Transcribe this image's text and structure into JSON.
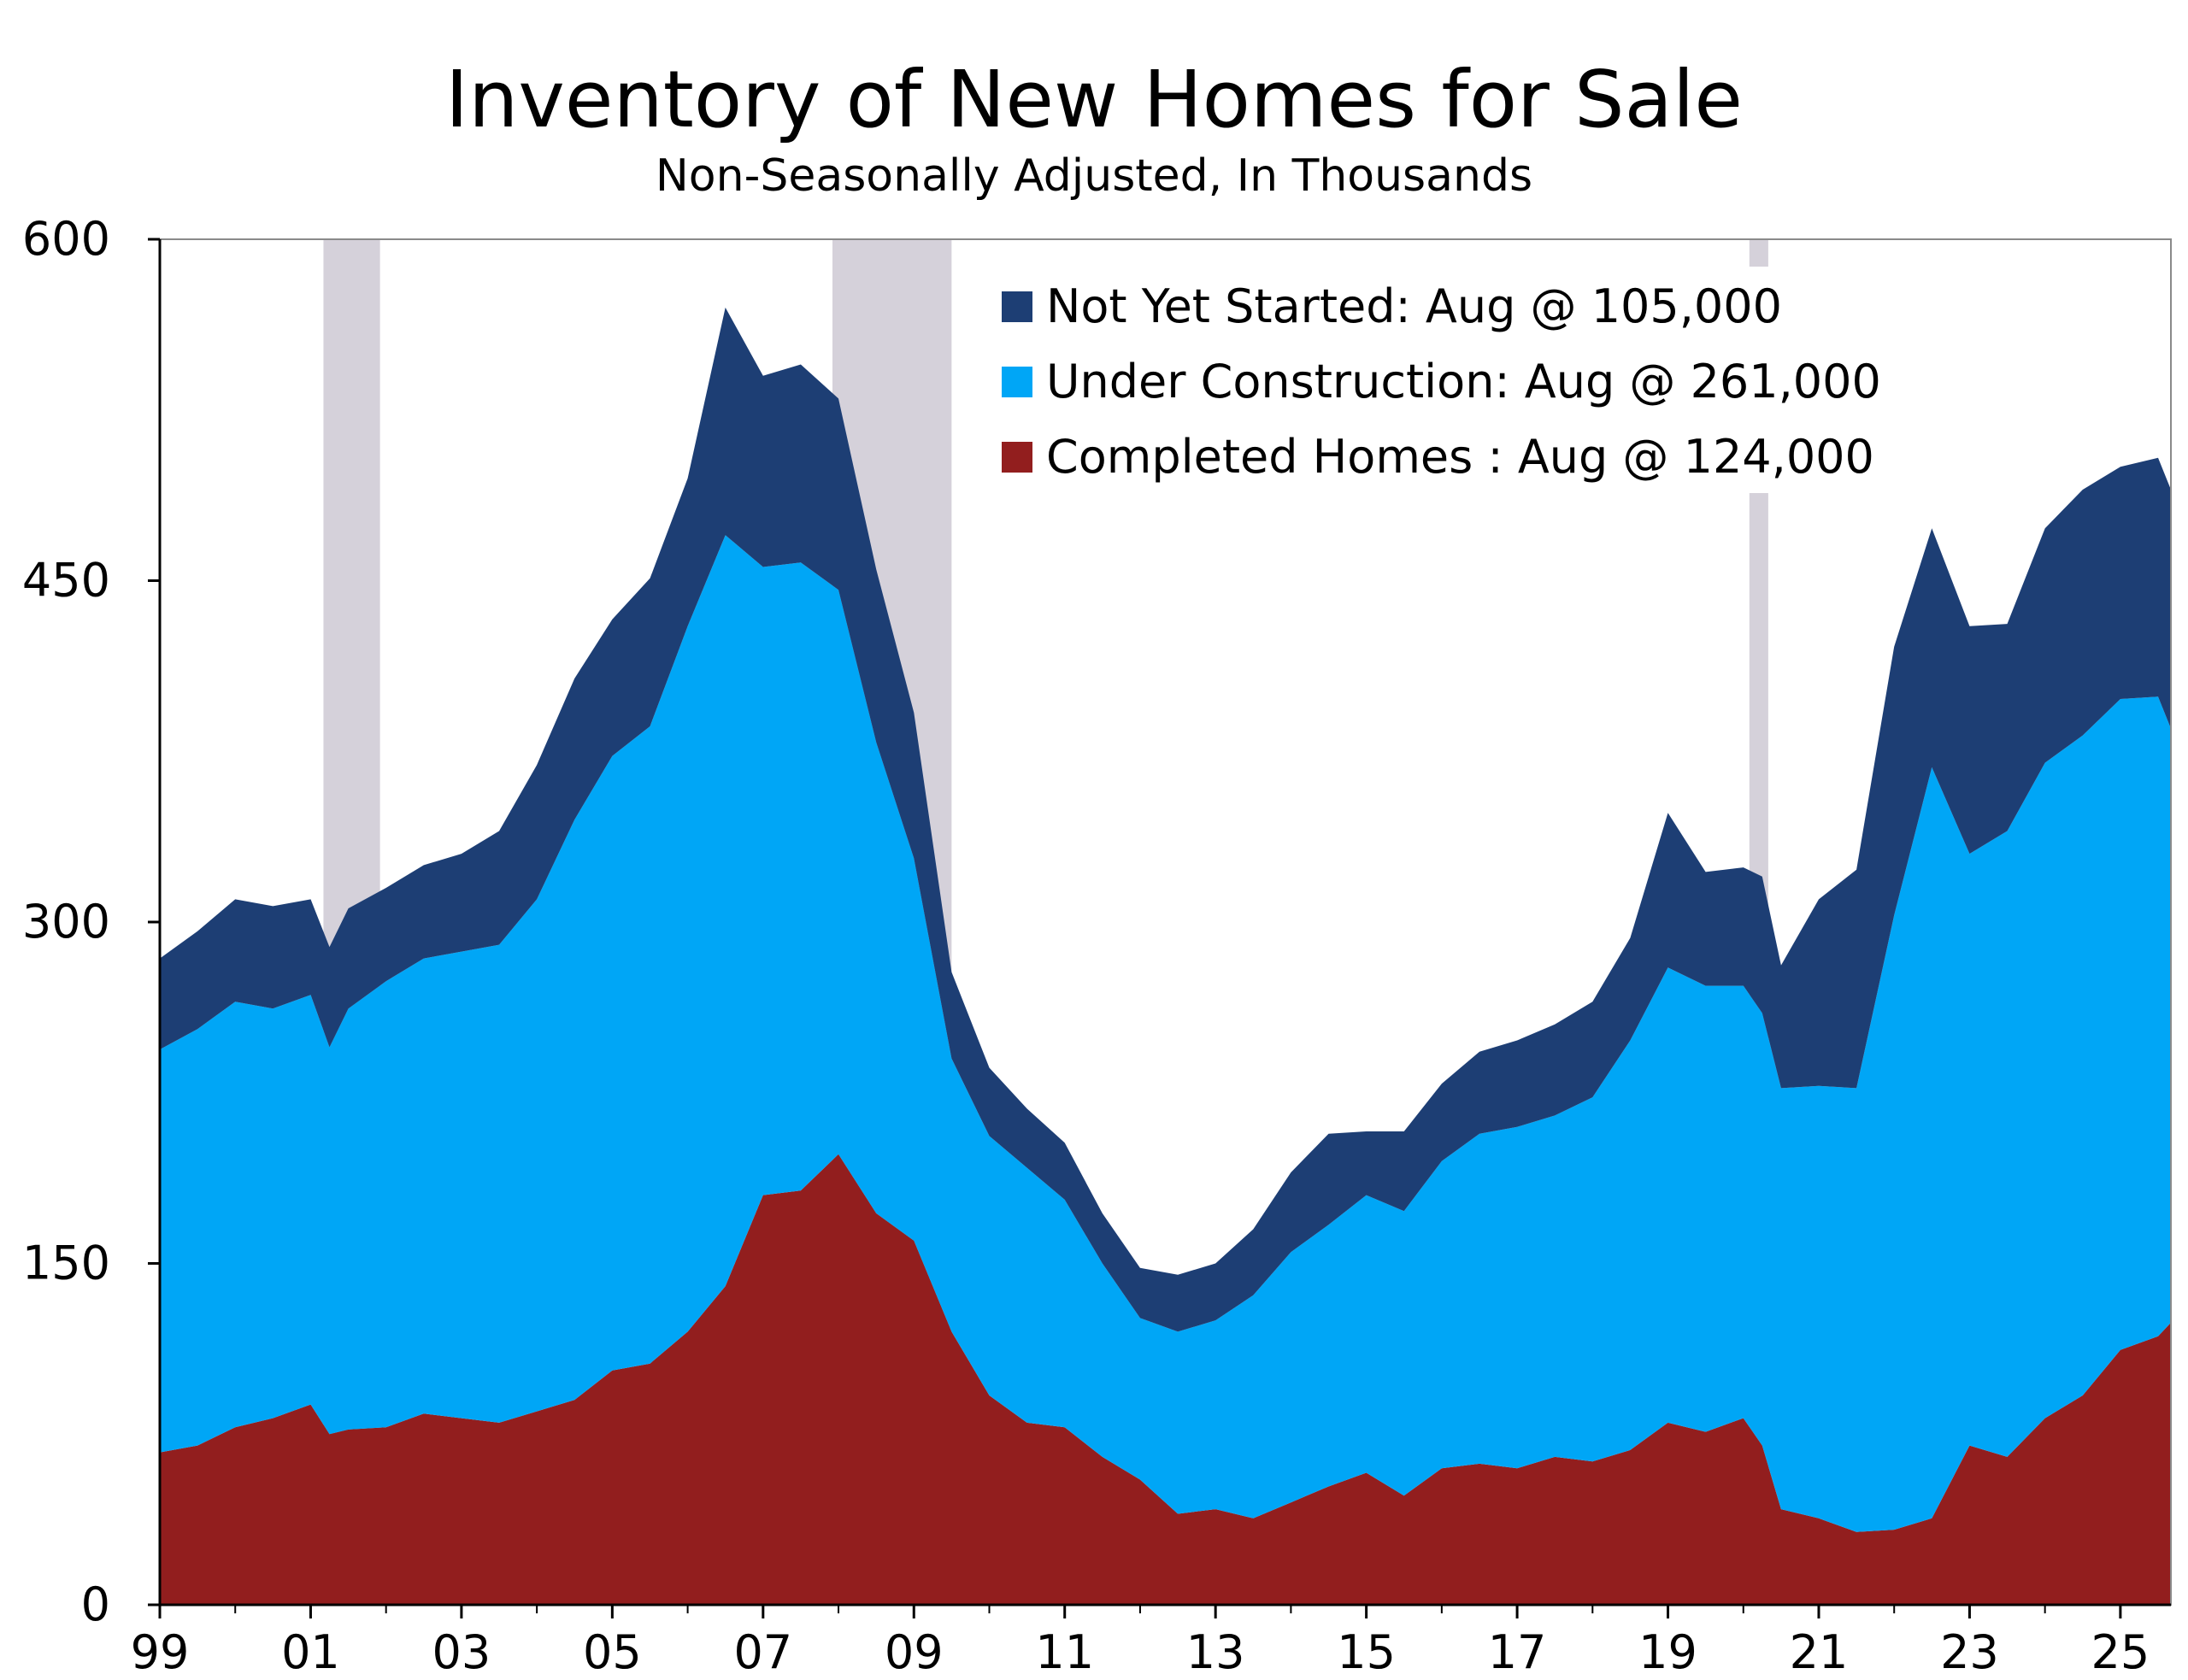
{
  "chart_data": {
    "type": "area",
    "stacked": true,
    "title": "Inventory of New Homes for Sale",
    "subtitle": "Non-Seasonally Adjusted, In Thousands",
    "xlabel": "",
    "ylabel": "",
    "ylim": [
      0,
      600
    ],
    "xlim": [
      1999.0,
      2025.67
    ],
    "y_ticks": [
      "0",
      "150",
      "300",
      "450",
      "600"
    ],
    "x_ticks": [
      "99",
      "01",
      "03",
      "05",
      "07",
      "09",
      "11",
      "13",
      "15",
      "17",
      "19",
      "21",
      "23",
      "25"
    ],
    "grid": false,
    "legend_position": "top-right",
    "recessions": [
      {
        "start": 2001.17,
        "end": 2001.92
      },
      {
        "start": 2007.92,
        "end": 2009.5
      },
      {
        "start": 2020.08,
        "end": 2020.33
      }
    ],
    "x": [
      1999.0,
      1999.5,
      2000.0,
      2000.5,
      2001.0,
      2001.25,
      2001.5,
      2002.0,
      2002.5,
      2003.0,
      2003.5,
      2004.0,
      2004.5,
      2005.0,
      2005.5,
      2006.0,
      2006.5,
      2007.0,
      2007.5,
      2008.0,
      2008.5,
      2009.0,
      2009.5,
      2010.0,
      2010.5,
      2011.0,
      2011.5,
      2012.0,
      2012.5,
      2013.0,
      2013.5,
      2014.0,
      2014.5,
      2015.0,
      2015.5,
      2016.0,
      2016.5,
      2017.0,
      2017.5,
      2018.0,
      2018.5,
      2019.0,
      2019.5,
      2020.0,
      2020.25,
      2020.5,
      2021.0,
      2021.5,
      2022.0,
      2022.5,
      2023.0,
      2023.5,
      2024.0,
      2024.5,
      2025.0,
      2025.5,
      2025.67
    ],
    "series": [
      {
        "name": "Completed Homes",
        "legend": "Completed Homes : Aug @ 124,000",
        "color": "#921E1E",
        "values": [
          67,
          70,
          78,
          82,
          88,
          75,
          77,
          78,
          84,
          82,
          80,
          85,
          90,
          103,
          106,
          120,
          140,
          180,
          182,
          198,
          172,
          160,
          120,
          92,
          80,
          78,
          65,
          55,
          40,
          42,
          38,
          45,
          52,
          58,
          48,
          60,
          62,
          60,
          65,
          63,
          68,
          80,
          76,
          82,
          70,
          42,
          38,
          32,
          33,
          38,
          70,
          65,
          82,
          92,
          112,
          118,
          124
        ]
      },
      {
        "name": "Under Construction",
        "legend": "Under Construction: Aug @ 261,000",
        "color": "#00A6F6",
        "values": [
          177,
          183,
          187,
          180,
          180,
          170,
          185,
          196,
          200,
          205,
          210,
          225,
          255,
          270,
          280,
          310,
          330,
          276,
          276,
          248,
          207,
          168,
          120,
          114,
          112,
          100,
          85,
          71,
          80,
          83,
          98,
          110,
          115,
          122,
          125,
          135,
          145,
          150,
          150,
          160,
          180,
          200,
          196,
          190,
          190,
          185,
          190,
          195,
          270,
          330,
          260,
          275,
          288,
          290,
          286,
          281,
          261
        ]
      },
      {
        "name": "Not Yet Started",
        "legend": "Not Yet Started: Aug @ 105,000",
        "color": "#1D3E74",
        "values": [
          40,
          43,
          45,
          45,
          42,
          44,
          44,
          41,
          41,
          43,
          50,
          59,
          62,
          60,
          65,
          65,
          100,
          84,
          87,
          84,
          76,
          64,
          38,
          30,
          26,
          25,
          22,
          22,
          25,
          25,
          29,
          35,
          40,
          28,
          35,
          34,
          36,
          38,
          40,
          42,
          45,
          68,
          50,
          52,
          60,
          54,
          82,
          96,
          118,
          105,
          100,
          91,
          103,
          108,
          102,
          105,
          105
        ]
      }
    ]
  }
}
